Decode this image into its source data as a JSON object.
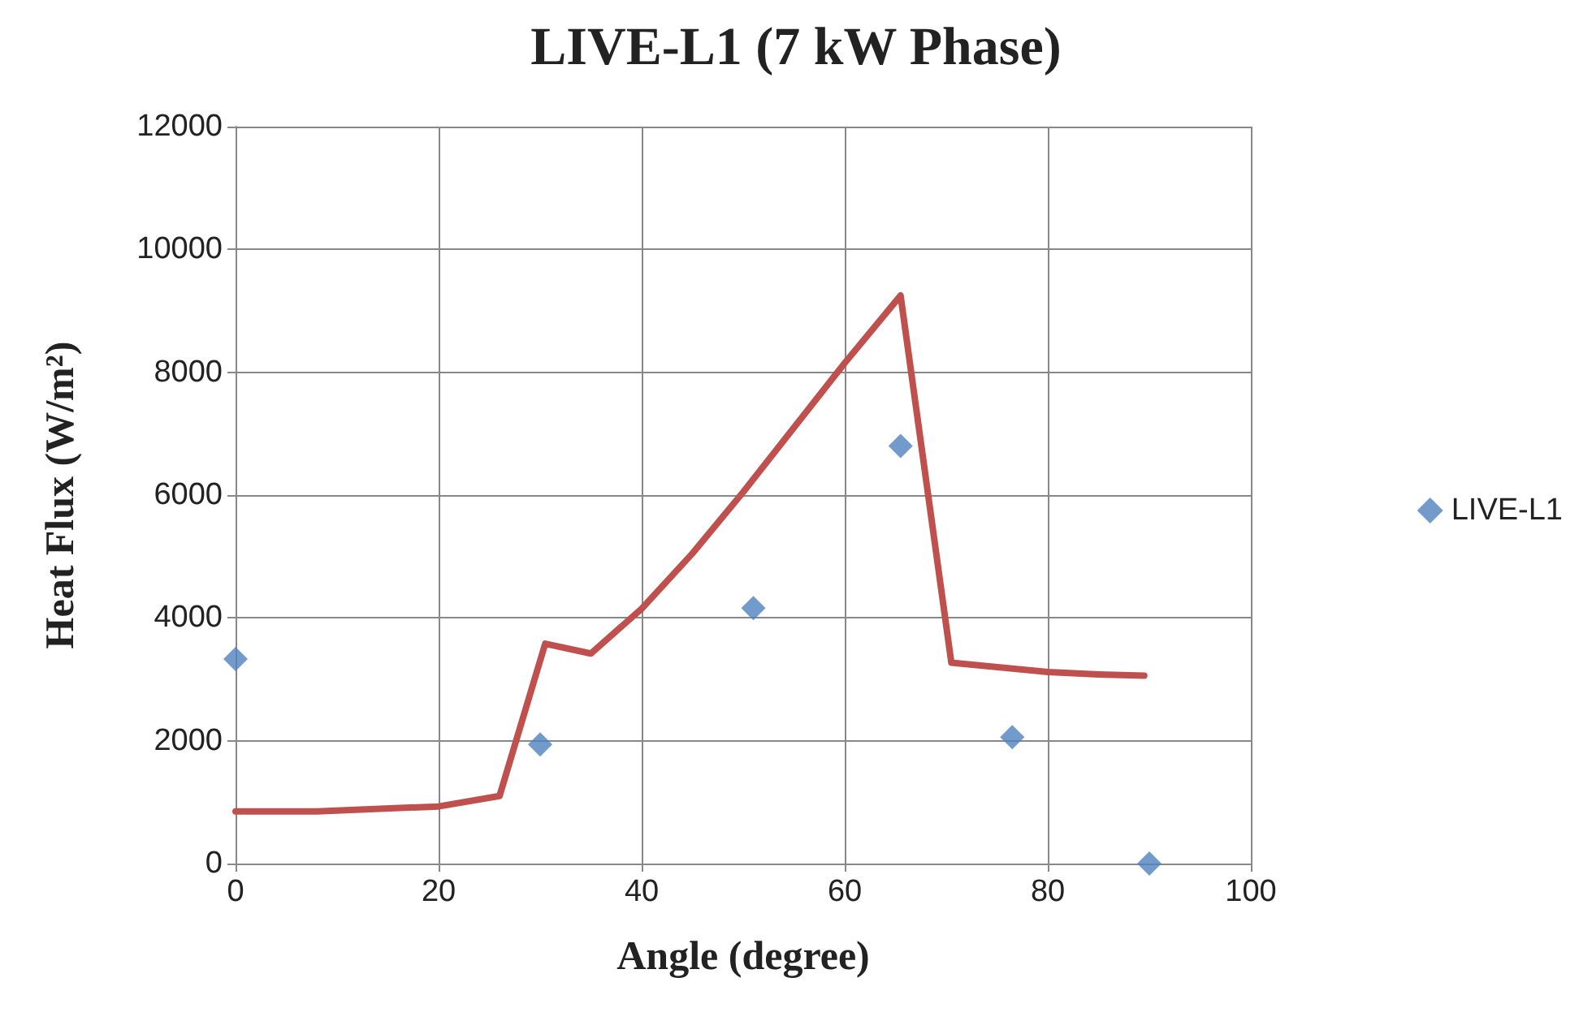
{
  "chart_data": {
    "type": "scatter",
    "title": "LIVE-L1 (7 kW Phase)",
    "xlabel": "Angle (degree)",
    "ylabel": "Heat Flux (W/m²)",
    "xlim": [
      0,
      100
    ],
    "xticks": [
      0,
      20,
      40,
      60,
      80,
      100
    ],
    "ylim": [
      0,
      12000
    ],
    "yticks": [
      0,
      2000,
      4000,
      6000,
      8000,
      10000,
      12000
    ],
    "grid": true,
    "legend": "right",
    "series": [
      {
        "name": "LIVE-L1",
        "color": "#4f81bd",
        "marker": "diamond",
        "x": [
          0,
          30,
          51,
          65.5,
          76.5,
          90
        ],
        "values": [
          3330,
          1940,
          4160,
          6800,
          2060,
          0
        ]
      },
      {
        "type": "line",
        "color": "#c0504d",
        "marker": "none",
        "x": [
          0,
          8,
          20,
          26,
          30.5,
          35,
          40,
          45,
          50,
          55,
          60,
          65.5,
          70.5,
          80,
          85,
          89.5
        ],
        "values": [
          850,
          850,
          930,
          1100,
          3580,
          3420,
          4150,
          5050,
          6050,
          7100,
          8150,
          9250,
          3270,
          3120,
          3080,
          3060
        ]
      }
    ]
  }
}
